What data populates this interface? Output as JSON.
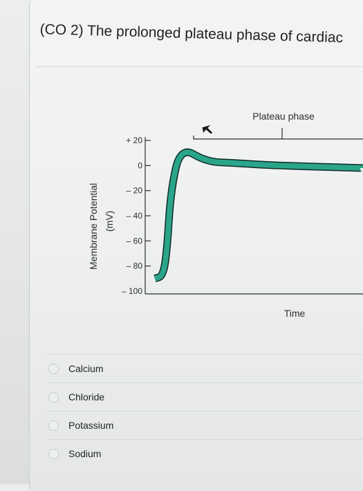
{
  "question": {
    "text": "(CO 2) The prolonged plateau phase of cardiac"
  },
  "chart_data": {
    "type": "line",
    "ylabel": "Membrane Potential",
    "yunit": "(mV)",
    "xlabel": "Time",
    "annotation": "Plateau phase",
    "y_ticks": [
      "+ 20",
      "0",
      "– 20",
      "– 40",
      "– 60",
      "– 80",
      "– 100"
    ],
    "ylim": [
      -100,
      20
    ],
    "series": [
      {
        "x": [
          0,
          0.4,
          0.6,
          0.8,
          1.3,
          2.6,
          4.0,
          6.0,
          10.5
        ],
        "y": [
          -90,
          -88,
          -70,
          -20,
          15,
          3,
          2,
          0,
          -2
        ]
      }
    ],
    "trace_color": "#2aa58a",
    "outline_color": "#0f2a26"
  },
  "options": [
    {
      "label": "Calcium"
    },
    {
      "label": "Chloride"
    },
    {
      "label": "Potassium"
    },
    {
      "label": "Sodium"
    }
  ]
}
